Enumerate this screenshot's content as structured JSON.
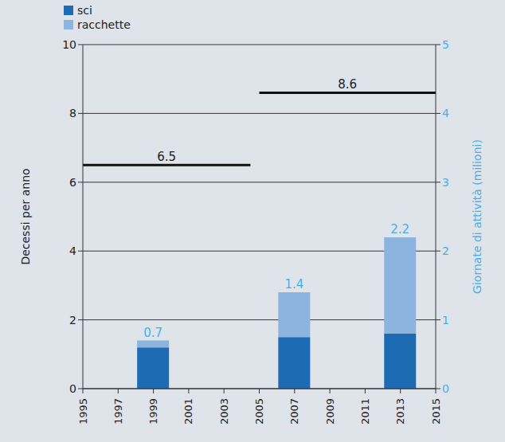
{
  "chart_data": {
    "type": "bar",
    "stacked": true,
    "grid": true,
    "legend": "top left",
    "ylabel": "Decessi per anno",
    "y2label": "Giornate di attività (milioni)",
    "x": [
      1999,
      2007,
      2013
    ],
    "xlim": [
      1995,
      2015
    ],
    "xticks": [
      1995,
      1997,
      1999,
      2001,
      2003,
      2005,
      2007,
      2009,
      2011,
      2013,
      2015
    ],
    "ylim": [
      0,
      10
    ],
    "yticks": [
      0,
      2,
      4,
      6,
      8,
      10
    ],
    "y2lim": [
      0,
      5
    ],
    "y2ticks": [
      0,
      1,
      2,
      3,
      4,
      5
    ],
    "series": [
      {
        "name": "sci",
        "color": "#1d6cb3",
        "axis": "y2",
        "values": [
          0.6,
          0.75,
          0.8
        ]
      },
      {
        "name": "racchette",
        "color": "#8db4df",
        "axis": "y2",
        "values": [
          0.1,
          0.65,
          1.4
        ]
      }
    ],
    "totals": [
      0.7,
      1.4,
      2.2
    ],
    "reference_lines": [
      {
        "value": 6.5,
        "x": [
          1995,
          2004.5
        ]
      },
      {
        "value": 8.6,
        "x": [
          2005,
          2015
        ]
      }
    ]
  }
}
